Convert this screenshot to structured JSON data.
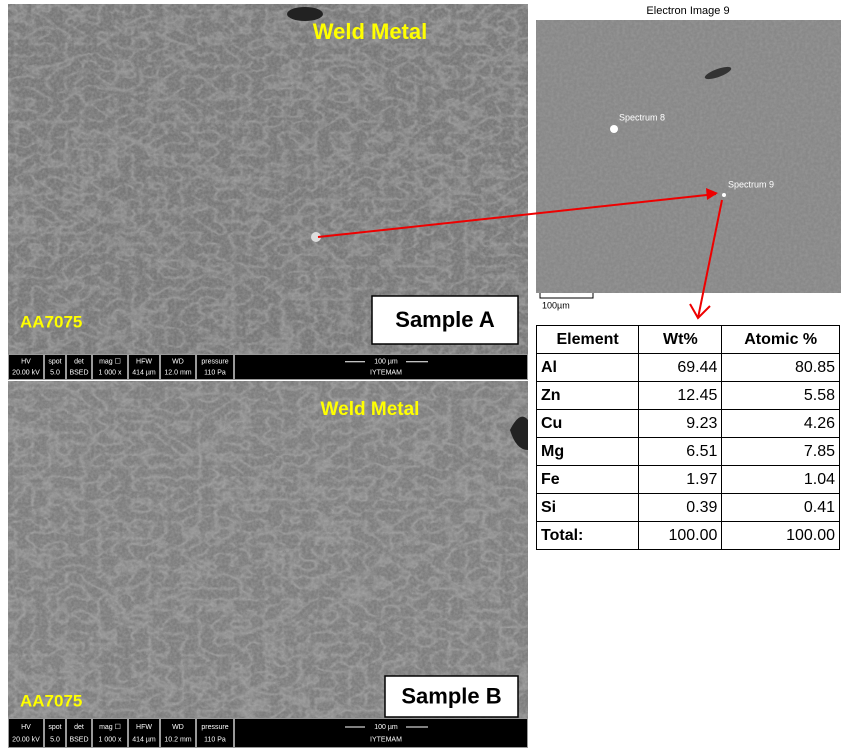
{
  "panels": [
    {
      "label": "Weld Metal",
      "material": "AA7075",
      "sample": "Sample A",
      "info": {
        "headers": [
          "HV",
          "spot",
          "det",
          "mag ☐",
          "HFW",
          "WD",
          "pressure"
        ],
        "values": [
          "20.00 kV",
          "5.0",
          "BSED",
          "1 000 x",
          "414 µm",
          "12.0 mm",
          "110 Pa"
        ],
        "scale": "100 µm",
        "lab": "IYTEMAM"
      }
    },
    {
      "label": "Weld Metal",
      "material": "AA7075",
      "sample": "Sample B",
      "info": {
        "headers": [
          "HV",
          "spot",
          "det",
          "mag ☐",
          "HFW",
          "WD",
          "pressure"
        ],
        "values": [
          "20.00 kV",
          "5.0",
          "BSED",
          "1 000 x",
          "414 µm",
          "10.2 mm",
          "110 Pa"
        ],
        "scale": "100 µm",
        "lab": "IYTEMAM"
      }
    }
  ],
  "electron_image": {
    "title": "Electron Image 9",
    "spectra": [
      "Spectrum 8",
      "Spectrum 9"
    ],
    "scale": "100µm"
  },
  "table": {
    "header": [
      "Element",
      "Wt%",
      "Atomic %"
    ],
    "rows": [
      [
        "Al",
        "69.44",
        "80.85"
      ],
      [
        "Zn",
        "12.45",
        "5.58"
      ],
      [
        "Cu",
        "9.23",
        "4.26"
      ],
      [
        "Mg",
        "6.51",
        "7.85"
      ],
      [
        "Fe",
        "1.97",
        "1.04"
      ],
      [
        "Si",
        "0.39",
        "0.41"
      ],
      [
        "Total:",
        "100.00",
        "100.00"
      ]
    ]
  }
}
